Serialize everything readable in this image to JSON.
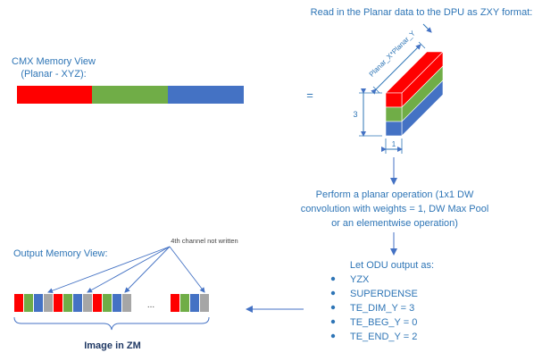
{
  "title_zxy": "Read in the Planar data to the DPU as ZXY format:",
  "cmx": {
    "title_line1": "CMX Memory View",
    "title_line2": "(Planar - XYZ):",
    "segments": [
      {
        "name": "red",
        "color": "#FF0000"
      },
      {
        "name": "green",
        "color": "#70AD47"
      },
      {
        "name": "blue",
        "color": "#4472C4"
      }
    ]
  },
  "equals_sign": "=",
  "cube": {
    "depth_label": "Planar_X*Planar_Y",
    "height_label": "3",
    "width_label": "1"
  },
  "operation": {
    "line1": "Perform a planar operation (1x1 DW",
    "line2": "convolution with weights = 1, DW Max Pool",
    "line3": "or an elementwise operation)"
  },
  "odu": {
    "title": "Let ODU output as:",
    "items": [
      "YZX",
      "SUPERDENSE",
      "TE_DIM_Y = 3",
      "TE_BEG_Y = 0",
      "TE_END_Y = 2"
    ]
  },
  "output": {
    "title": "Output Memory View:",
    "note": "4th channel not written",
    "ellipsis": "...",
    "image_label": "Image in ZM"
  },
  "colors": {
    "red": "#FF0000",
    "green": "#70AD47",
    "blue": "#4472C4",
    "gray": "#A6A6A6",
    "text_blue": "#2E75B6",
    "arrow": "#4472C4"
  }
}
